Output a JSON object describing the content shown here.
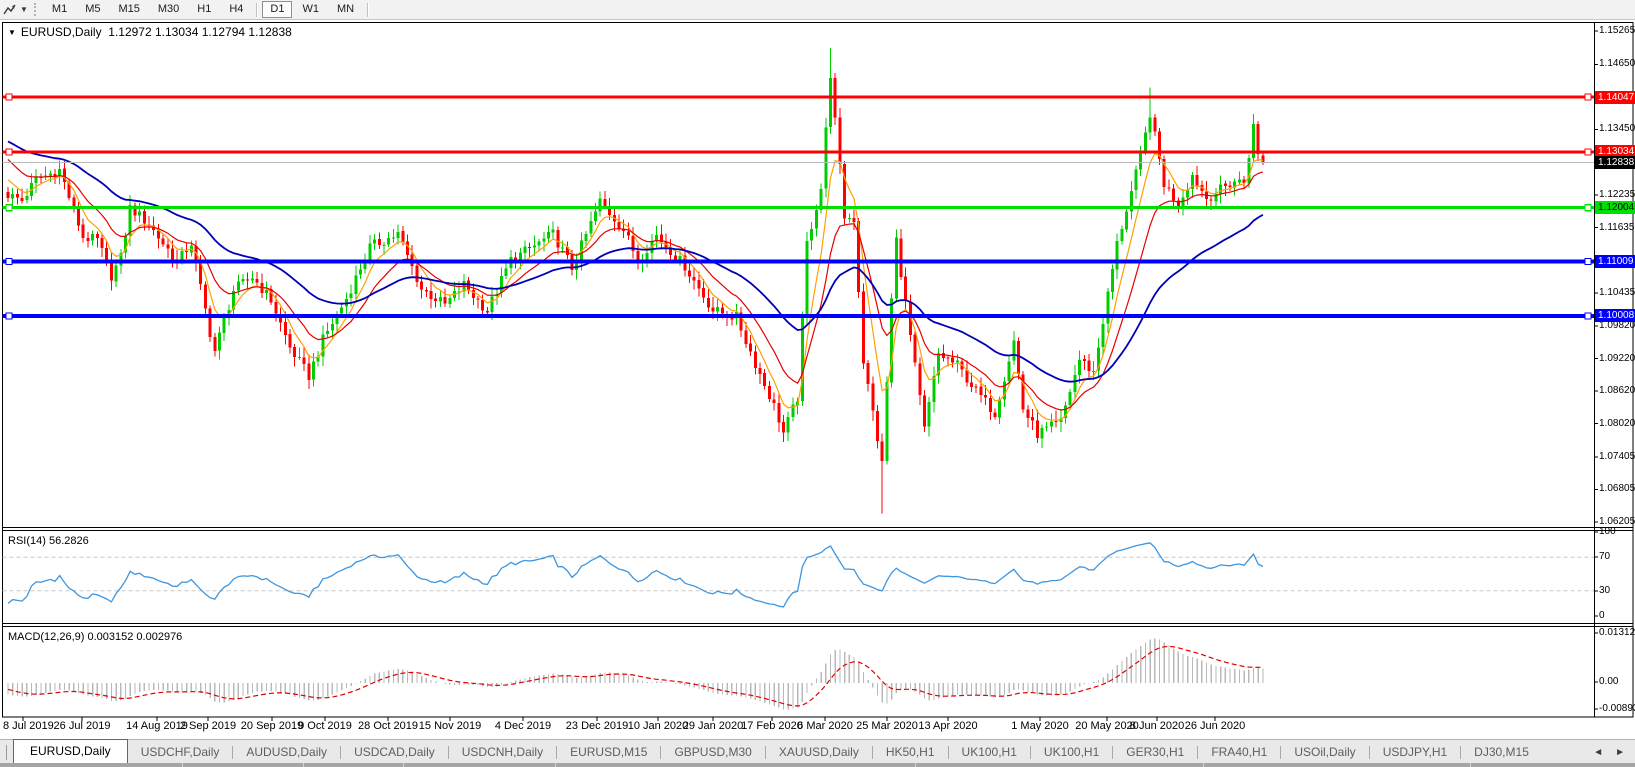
{
  "toolbar": {
    "timeframes": [
      {
        "label": "M1"
      },
      {
        "label": "M5"
      },
      {
        "label": "M15"
      },
      {
        "label": "M30"
      },
      {
        "label": "H1"
      },
      {
        "label": "H4"
      },
      {
        "label": "D1"
      },
      {
        "label": "W1"
      },
      {
        "label": "MN"
      }
    ],
    "selected": "D1"
  },
  "header": {
    "symbol": "EURUSD,Daily",
    "ohlc_text": "1.12972 1.13034 1.12794 1.12838",
    "collapse_icon": "▼"
  },
  "indicators": {
    "rsi_label": "RSI(14)",
    "rsi_value": "56.2826",
    "macd_label": "MACD(12,26,9)",
    "macd_values": "0.003152 0.002976"
  },
  "chart_data": {
    "type": "candlestick",
    "symbol": "EURUSD",
    "timeframe": "Daily",
    "current_bar": {
      "open": 1.12972,
      "high": 1.13034,
      "low": 1.12794,
      "close": 1.12838
    },
    "price_tick_labels": [
      "1.15265",
      "1.14650",
      "1.13450",
      "1.12235",
      "1.11635",
      "1.10435",
      "1.09820",
      "1.09220",
      "1.08620",
      "1.08020",
      "1.07405",
      "1.06805",
      "1.06205"
    ],
    "x_tick_labels": [
      "8 Jul 2019",
      "26 Jul 2019",
      "14 Aug 2019",
      "2 Sep 2019",
      "20 Sep 2019",
      "9 Oct 2019",
      "28 Oct 2019",
      "15 Nov 2019",
      "4 Dec 2019",
      "23 Dec 2019",
      "10 Jan 2020",
      "29 Jan 2020",
      "17 Feb 2020",
      "6 Mar 2020",
      "25 Mar 2020",
      "13 Apr 2020",
      "1 May 2020",
      "20 May 2020",
      "8 Jun 2020",
      "26 Jun 2020"
    ],
    "price_range": [
      1.06205,
      1.15265
    ],
    "up_color": "#00cc00",
    "down_color": "#ff0000",
    "current_price_line": {
      "value": 1.12838,
      "label": "1.12838",
      "color": "#bbbbbb",
      "badge_bg": "#000000",
      "badge_text": "#ffffff"
    },
    "horizontal_lines": [
      {
        "value": 1.14047,
        "label": "1.14047",
        "color": "#ff0000",
        "text": "#ffffff",
        "thickness": 3
      },
      {
        "value": 1.13034,
        "label": "1.13034",
        "color": "#ff0000",
        "text": "#ffffff",
        "thickness": 3
      },
      {
        "value": 1.12004,
        "label": "1.12004",
        "color": "#00e000",
        "text": "#000000",
        "thickness": 3
      },
      {
        "value": 1.11009,
        "label": "1.11009",
        "color": "#0000ff",
        "text": "#ffffff",
        "thickness": 4
      },
      {
        "value": 1.10008,
        "label": "1.10008",
        "color": "#0000ff",
        "text": "#ffffff",
        "thickness": 4
      }
    ],
    "moving_averages": [
      {
        "name": "fast",
        "period": 6,
        "color": "#ffa000",
        "width": 1.2
      },
      {
        "name": "mid",
        "period": 14,
        "color": "#e60000",
        "width": 1.2
      },
      {
        "name": "slow",
        "period": 40,
        "color": "#0000b4",
        "width": 1.8
      }
    ],
    "close_keyframes": [
      [
        -40,
        1.129
      ],
      [
        -25,
        1.1405
      ],
      [
        -12,
        1.137
      ],
      [
        -5,
        1.128
      ],
      [
        0,
        1.1225
      ],
      [
        3,
        1.1214
      ],
      [
        6,
        1.1252
      ],
      [
        11,
        1.127
      ],
      [
        16,
        1.1146
      ],
      [
        19,
        1.114
      ],
      [
        22,
        1.1075
      ],
      [
        24,
        1.1108
      ],
      [
        26,
        1.12
      ],
      [
        30,
        1.117
      ],
      [
        36,
        1.11
      ],
      [
        39,
        1.1135
      ],
      [
        43,
        1.097
      ],
      [
        44,
        1.0936
      ],
      [
        48,
        1.1048
      ],
      [
        52,
        1.1073
      ],
      [
        56,
        1.103
      ],
      [
        60,
        1.0942
      ],
      [
        64,
        1.089
      ],
      [
        67,
        1.0957
      ],
      [
        72,
        1.1033
      ],
      [
        77,
        1.1128
      ],
      [
        83,
        1.1152
      ],
      [
        88,
        1.105
      ],
      [
        93,
        1.1021
      ],
      [
        97,
        1.1058
      ],
      [
        102,
        1.101
      ],
      [
        107,
        1.1104
      ],
      [
        112,
        1.113
      ],
      [
        116,
        1.1152
      ],
      [
        120,
        1.1089
      ],
      [
        126,
        1.1212
      ],
      [
        131,
        1.116
      ],
      [
        134,
        1.1103
      ],
      [
        138,
        1.115
      ],
      [
        144,
        1.1093
      ],
      [
        150,
        1.1011
      ],
      [
        155,
        1.0998
      ],
      [
        159,
        1.0913
      ],
      [
        163,
        1.0835
      ],
      [
        165,
        1.0785
      ],
      [
        168,
        1.085
      ],
      [
        170,
        1.1134
      ],
      [
        173,
        1.1237
      ],
      [
        175,
        1.1448
      ],
      [
        178,
        1.1184
      ],
      [
        180,
        1.118
      ],
      [
        182,
        1.0918
      ],
      [
        186,
        1.0727
      ],
      [
        188,
        1.103
      ],
      [
        189,
        1.1141
      ],
      [
        192,
        1.0963
      ],
      [
        195,
        1.0791
      ],
      [
        198,
        1.093
      ],
      [
        202,
        1.091
      ],
      [
        206,
        1.0862
      ],
      [
        210,
        1.0822
      ],
      [
        214,
        1.0955
      ],
      [
        216,
        1.083
      ],
      [
        219,
        1.0783
      ],
      [
        224,
        1.0805
      ],
      [
        228,
        1.092
      ],
      [
        231,
        1.0897
      ],
      [
        236,
        1.1134
      ],
      [
        241,
        1.1294
      ],
      [
        243,
        1.1375
      ],
      [
        246,
        1.1245
      ],
      [
        249,
        1.1206
      ],
      [
        252,
        1.1261
      ],
      [
        255,
        1.1218
      ],
      [
        258,
        1.1234
      ],
      [
        261,
        1.125
      ],
      [
        263,
        1.1248
      ],
      [
        265,
        1.135
      ],
      [
        266,
        1.1297
      ],
      [
        267,
        1.1284
      ]
    ],
    "wick_overrides": {
      "44": {
        "low": 1.0926
      },
      "64": {
        "low": 1.0879
      },
      "165": {
        "low": 1.0778
      },
      "175": {
        "high": 1.1495
      },
      "186": {
        "low": 1.0636
      },
      "195": {
        "low": 1.0791
      },
      "219": {
        "low": 1.0766
      },
      "243": {
        "high": 1.1422
      },
      "265": {
        "high": 1.1365
      }
    },
    "rsi": {
      "period": 14,
      "color": "#3d96e0",
      "axis_labels": [
        "100",
        "70",
        "30",
        "0"
      ],
      "level_lines": [
        70,
        30
      ],
      "last_value": 56.2826
    },
    "macd": {
      "fast": 12,
      "slow": 26,
      "signal": 9,
      "axis_labels": [
        "0.01312",
        "0.00",
        "-0.00893"
      ],
      "histogram_color": "#b9b9b9",
      "signal_color": "#e00000",
      "last_macd": 0.003152,
      "last_signal": 0.002976
    }
  },
  "tabs": {
    "items": [
      {
        "label": "EURUSD,Daily",
        "active": true
      },
      {
        "label": "USDCHF,Daily",
        "active": false
      },
      {
        "label": "AUDUSD,Daily",
        "active": false
      },
      {
        "label": "USDCAD,Daily",
        "active": false
      },
      {
        "label": "USDCNH,Daily",
        "active": false
      },
      {
        "label": "EURUSD,M15",
        "active": false
      },
      {
        "label": "GBPUSD,M30",
        "active": false
      },
      {
        "label": "XAUUSD,Daily",
        "active": false
      },
      {
        "label": "HK50,H1",
        "active": false
      },
      {
        "label": "UK100,H1",
        "active": false
      },
      {
        "label": "UK100,H1",
        "active": false
      },
      {
        "label": "GER30,H1",
        "active": false
      },
      {
        "label": "FRA40,H1",
        "active": false
      },
      {
        "label": "USOil,Daily",
        "active": false
      },
      {
        "label": "USDJPY,H1",
        "active": false
      },
      {
        "label": "DJ30,M15",
        "active": false
      }
    ],
    "scroll_left": "◄",
    "scroll_right": "►"
  }
}
